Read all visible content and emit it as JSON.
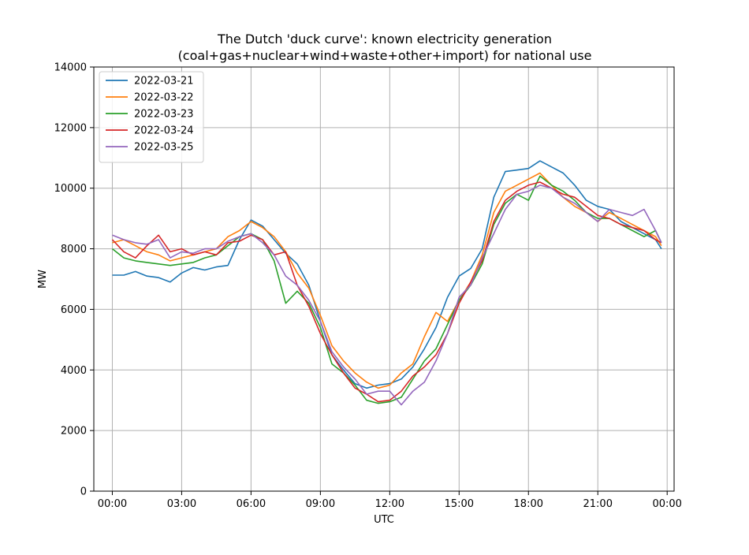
{
  "chart_data": {
    "type": "line",
    "title": "The Dutch 'duck curve': known electricity generation",
    "subtitle": "(coal+gas+nuclear+wind+waste+other+import) for national use",
    "xlabel": "UTC",
    "ylabel": "MW",
    "xlim": [
      -0.8,
      24.3
    ],
    "ylim": [
      0,
      14000
    ],
    "x_ticks": [
      0,
      3,
      6,
      9,
      12,
      15,
      18,
      21,
      24
    ],
    "x_tick_labels": [
      "00:00",
      "03:00",
      "06:00",
      "09:00",
      "12:00",
      "15:00",
      "18:00",
      "21:00",
      "00:00"
    ],
    "y_ticks": [
      0,
      2000,
      4000,
      6000,
      8000,
      10000,
      12000,
      14000
    ],
    "y_tick_labels": [
      "0",
      "2000",
      "4000",
      "6000",
      "8000",
      "10000",
      "12000",
      "14000"
    ],
    "grid": true,
    "legend_position": "top-left",
    "series": [
      {
        "name": "2022-03-21",
        "color": "#1f77b4",
        "points": [
          [
            0,
            7130
          ],
          [
            0.5,
            7130
          ],
          [
            1,
            7250
          ],
          [
            1.5,
            7100
          ],
          [
            2,
            7050
          ],
          [
            2.5,
            6900
          ],
          [
            3,
            7200
          ],
          [
            3.5,
            7380
          ],
          [
            4,
            7300
          ],
          [
            4.5,
            7400
          ],
          [
            5,
            7450
          ],
          [
            5.5,
            8300
          ],
          [
            6,
            8950
          ],
          [
            6.5,
            8750
          ],
          [
            7,
            8300
          ],
          [
            7.5,
            7850
          ],
          [
            8,
            7500
          ],
          [
            8.5,
            6800
          ],
          [
            9,
            5600
          ],
          [
            9.5,
            4500
          ],
          [
            10,
            4000
          ],
          [
            10.5,
            3550
          ],
          [
            11,
            3400
          ],
          [
            11.5,
            3500
          ],
          [
            12,
            3550
          ],
          [
            12.5,
            3700
          ],
          [
            13,
            4100
          ],
          [
            13.5,
            4700
          ],
          [
            14,
            5400
          ],
          [
            14.5,
            6400
          ],
          [
            15,
            7100
          ],
          [
            15.5,
            7350
          ],
          [
            16,
            8000
          ],
          [
            16.5,
            9700
          ],
          [
            17,
            10550
          ],
          [
            17.5,
            10600
          ],
          [
            18,
            10650
          ],
          [
            18.5,
            10900
          ],
          [
            19,
            10700
          ],
          [
            19.5,
            10500
          ],
          [
            20,
            10100
          ],
          [
            20.5,
            9600
          ],
          [
            21,
            9400
          ],
          [
            21.5,
            9300
          ],
          [
            22,
            8900
          ],
          [
            22.5,
            8700
          ],
          [
            23,
            8500
          ],
          [
            23.5,
            8300
          ],
          [
            23.75,
            8000
          ]
        ]
      },
      {
        "name": "2022-03-22",
        "color": "#ff7f0e",
        "points": [
          [
            0,
            8200
          ],
          [
            0.5,
            8300
          ],
          [
            1,
            8100
          ],
          [
            1.5,
            7900
          ],
          [
            2,
            7800
          ],
          [
            2.5,
            7600
          ],
          [
            3,
            7700
          ],
          [
            3.5,
            7800
          ],
          [
            4,
            7900
          ],
          [
            4.5,
            8000
          ],
          [
            5,
            8400
          ],
          [
            5.5,
            8600
          ],
          [
            6,
            8900
          ],
          [
            6.5,
            8700
          ],
          [
            7,
            8400
          ],
          [
            7.5,
            7900
          ],
          [
            8,
            7200
          ],
          [
            8.5,
            6700
          ],
          [
            9,
            5800
          ],
          [
            9.5,
            4800
          ],
          [
            10,
            4300
          ],
          [
            10.5,
            3900
          ],
          [
            11,
            3600
          ],
          [
            11.5,
            3400
          ],
          [
            12,
            3500
          ],
          [
            12.5,
            3900
          ],
          [
            13,
            4200
          ],
          [
            13.5,
            5100
          ],
          [
            14,
            5900
          ],
          [
            14.5,
            5600
          ],
          [
            15,
            6300
          ],
          [
            15.5,
            6900
          ],
          [
            16,
            7800
          ],
          [
            16.5,
            9200
          ],
          [
            17,
            9900
          ],
          [
            17.5,
            10100
          ],
          [
            18,
            10300
          ],
          [
            18.5,
            10500
          ],
          [
            19,
            10100
          ],
          [
            19.5,
            9700
          ],
          [
            20,
            9400
          ],
          [
            20.5,
            9200
          ],
          [
            21,
            8900
          ],
          [
            21.5,
            9200
          ],
          [
            22,
            9000
          ],
          [
            22.5,
            8800
          ],
          [
            23,
            8600
          ],
          [
            23.5,
            8400
          ],
          [
            23.75,
            8100
          ]
        ]
      },
      {
        "name": "2022-03-23",
        "color": "#2ca02c",
        "points": [
          [
            0,
            8000
          ],
          [
            0.5,
            7700
          ],
          [
            1,
            7600
          ],
          [
            1.5,
            7550
          ],
          [
            2,
            7500
          ],
          [
            2.5,
            7450
          ],
          [
            3,
            7500
          ],
          [
            3.5,
            7550
          ],
          [
            4,
            7700
          ],
          [
            4.5,
            7800
          ],
          [
            5,
            8100
          ],
          [
            5.5,
            8400
          ],
          [
            6,
            8500
          ],
          [
            6.5,
            8300
          ],
          [
            7,
            7600
          ],
          [
            7.5,
            6200
          ],
          [
            8,
            6600
          ],
          [
            8.5,
            6200
          ],
          [
            9,
            5400
          ],
          [
            9.5,
            4200
          ],
          [
            10,
            3900
          ],
          [
            10.5,
            3500
          ],
          [
            11,
            3000
          ],
          [
            11.5,
            2900
          ],
          [
            12,
            2950
          ],
          [
            12.5,
            3100
          ],
          [
            13,
            3700
          ],
          [
            13.5,
            4300
          ],
          [
            14,
            4700
          ],
          [
            14.5,
            5500
          ],
          [
            15,
            6300
          ],
          [
            15.5,
            6800
          ],
          [
            16,
            7500
          ],
          [
            16.5,
            8800
          ],
          [
            17,
            9500
          ],
          [
            17.5,
            9800
          ],
          [
            18,
            9600
          ],
          [
            18.5,
            10400
          ],
          [
            19,
            10100
          ],
          [
            19.5,
            9900
          ],
          [
            20,
            9600
          ],
          [
            20.5,
            9200
          ],
          [
            21,
            9000
          ],
          [
            21.5,
            9000
          ],
          [
            22,
            8800
          ],
          [
            22.5,
            8600
          ],
          [
            23,
            8400
          ],
          [
            23.5,
            8600
          ],
          [
            23.75,
            8200
          ]
        ]
      },
      {
        "name": "2022-03-24",
        "color": "#d62728",
        "points": [
          [
            0,
            8300
          ],
          [
            0.5,
            7900
          ],
          [
            1,
            7700
          ],
          [
            1.5,
            8100
          ],
          [
            2,
            8450
          ],
          [
            2.5,
            7900
          ],
          [
            3,
            8000
          ],
          [
            3.5,
            7800
          ],
          [
            4,
            7900
          ],
          [
            4.5,
            7800
          ],
          [
            5,
            8200
          ],
          [
            5.5,
            8250
          ],
          [
            6,
            8450
          ],
          [
            6.5,
            8300
          ],
          [
            7,
            7800
          ],
          [
            7.5,
            7900
          ],
          [
            8,
            6800
          ],
          [
            8.5,
            6100
          ],
          [
            9,
            5200
          ],
          [
            9.5,
            4500
          ],
          [
            10,
            3900
          ],
          [
            10.5,
            3400
          ],
          [
            11,
            3200
          ],
          [
            11.5,
            2950
          ],
          [
            12,
            3000
          ],
          [
            12.5,
            3300
          ],
          [
            13,
            3800
          ],
          [
            13.5,
            4100
          ],
          [
            14,
            4500
          ],
          [
            14.5,
            5200
          ],
          [
            15,
            6200
          ],
          [
            15.5,
            6900
          ],
          [
            16,
            7600
          ],
          [
            16.5,
            8900
          ],
          [
            17,
            9600
          ],
          [
            17.5,
            9900
          ],
          [
            18,
            10100
          ],
          [
            18.5,
            10200
          ],
          [
            19,
            10000
          ],
          [
            19.5,
            9800
          ],
          [
            20,
            9700
          ],
          [
            20.5,
            9400
          ],
          [
            21,
            9100
          ],
          [
            21.5,
            9000
          ],
          [
            22,
            8800
          ],
          [
            22.5,
            8700
          ],
          [
            23,
            8600
          ],
          [
            23.5,
            8300
          ],
          [
            23.75,
            8200
          ]
        ]
      },
      {
        "name": "2022-03-25",
        "color": "#9467bd",
        "points": [
          [
            0,
            8450
          ],
          [
            0.5,
            8300
          ],
          [
            1,
            8200
          ],
          [
            1.5,
            8150
          ],
          [
            2,
            8300
          ],
          [
            2.5,
            7700
          ],
          [
            3,
            7900
          ],
          [
            3.5,
            7850
          ],
          [
            4,
            8000
          ],
          [
            4.5,
            8000
          ],
          [
            5,
            8250
          ],
          [
            5.5,
            8400
          ],
          [
            6,
            8500
          ],
          [
            6.5,
            8200
          ],
          [
            7,
            7800
          ],
          [
            7.5,
            7100
          ],
          [
            8,
            6800
          ],
          [
            8.5,
            6300
          ],
          [
            9,
            5600
          ],
          [
            9.5,
            4600
          ],
          [
            10,
            4100
          ],
          [
            10.5,
            3700
          ],
          [
            11,
            3200
          ],
          [
            11.5,
            3300
          ],
          [
            12,
            3300
          ],
          [
            12.5,
            2850
          ],
          [
            13,
            3300
          ],
          [
            13.5,
            3600
          ],
          [
            14,
            4300
          ],
          [
            14.5,
            5200
          ],
          [
            15,
            6400
          ],
          [
            15.5,
            6800
          ],
          [
            16,
            7700
          ],
          [
            16.5,
            8500
          ],
          [
            17,
            9300
          ],
          [
            17.5,
            9800
          ],
          [
            18,
            9900
          ],
          [
            18.5,
            10100
          ],
          [
            19,
            10000
          ],
          [
            19.5,
            9700
          ],
          [
            20,
            9500
          ],
          [
            20.5,
            9200
          ],
          [
            21,
            8900
          ],
          [
            21.5,
            9300
          ],
          [
            22,
            9200
          ],
          [
            22.5,
            9100
          ],
          [
            23,
            9300
          ],
          [
            23.5,
            8600
          ],
          [
            23.75,
            8200
          ]
        ]
      }
    ]
  }
}
